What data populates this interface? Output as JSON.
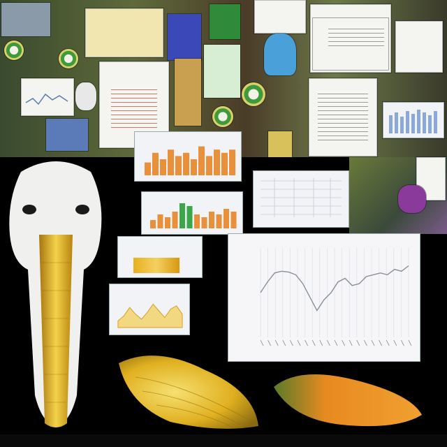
{
  "scene": {
    "colors": {
      "background": "#000000",
      "gold": "#e0b020",
      "deep_gold": "#b88410",
      "bar_orange": "#e8903a",
      "bar_green": "#3aa84a",
      "panel": "#f2f3f6",
      "line_grey": "#8a8f98"
    },
    "icons": [
      "skull-figure",
      "golden-conch",
      "orange-pod",
      "document-sheet",
      "badge-emblem"
    ]
  },
  "chart_data": [
    {
      "type": "bar",
      "values": [
        4,
        7,
        5,
        8,
        6,
        7,
        5,
        9,
        6,
        8,
        7,
        8
      ],
      "ylim": [
        0,
        10
      ]
    },
    {
      "type": "bar",
      "series_colors": [
        "#e8903a",
        "#3aa84a"
      ],
      "values": [
        3,
        5,
        4,
        6,
        9,
        8,
        5,
        4,
        6,
        5,
        7,
        6
      ],
      "ylim": [
        0,
        10
      ]
    },
    {
      "type": "line",
      "values": [
        50,
        62,
        72,
        74,
        73,
        70,
        60,
        45,
        30,
        42,
        50,
        62,
        66,
        58,
        60,
        68,
        70,
        72,
        70,
        76,
        74,
        80
      ],
      "ylim": [
        0,
        100
      ],
      "grid": true
    },
    {
      "type": "area",
      "values": [
        20,
        35,
        60,
        40,
        25,
        45,
        70,
        50,
        30,
        55,
        65,
        40
      ],
      "ylim": [
        0,
        100
      ]
    }
  ]
}
